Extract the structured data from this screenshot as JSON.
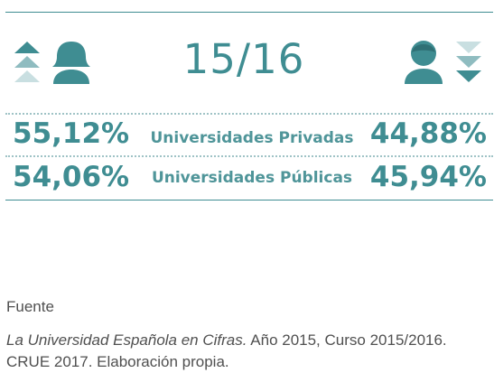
{
  "header": {
    "period": "15/16",
    "left_icon": "female-user-icon",
    "right_icon": "male-user-icon",
    "up_icon": "triple-chevron-up-icon",
    "down_icon": "triple-chevron-down-icon"
  },
  "rows": [
    {
      "label": "Universidades Privadas",
      "left": "55,12%",
      "right": "44,88%"
    },
    {
      "label": "Universidades Públicas",
      "left": "54,06%",
      "right": "45,94%"
    }
  ],
  "colors": {
    "teal": "#3f8d92",
    "teal_light": "#c9dfe1",
    "text_gray": "#505050"
  },
  "source": {
    "title": "Fuente",
    "book": "La Universidad Española en Cifras.",
    "rest": " Año 2015, Curso 2015/2016. CRUE 2017. Elaboración propia."
  }
}
